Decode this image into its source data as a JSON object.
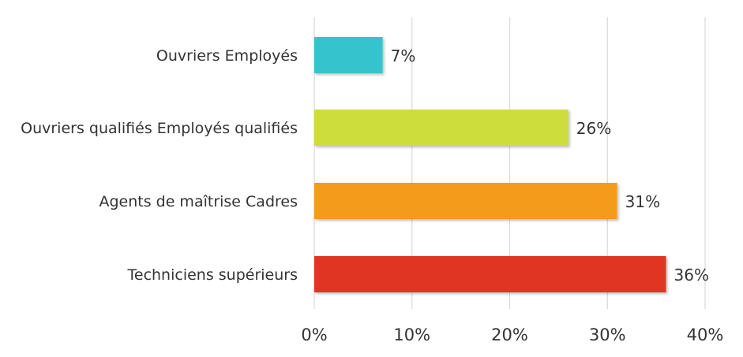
{
  "chart_data": {
    "type": "bar",
    "orientation": "horizontal",
    "categories": [
      "Ouvriers Employés",
      "Ouvriers qualifiés Employés qualifiés",
      "Agents de maîtrise Cadres",
      "Techniciens supérieurs"
    ],
    "values": [
      7,
      26,
      31,
      36
    ],
    "value_labels": [
      "7%",
      "26%",
      "31%",
      "36%"
    ],
    "colors": [
      "#34c3cd",
      "#cddd3a",
      "#f59b1f",
      "#e03423"
    ],
    "xlim": [
      0,
      40
    ],
    "x_ticks": [
      0,
      10,
      20,
      30,
      40
    ],
    "x_tick_labels": [
      "0%",
      "10%",
      "20%",
      "30%",
      "40%"
    ],
    "grid": true,
    "legend": "none"
  }
}
